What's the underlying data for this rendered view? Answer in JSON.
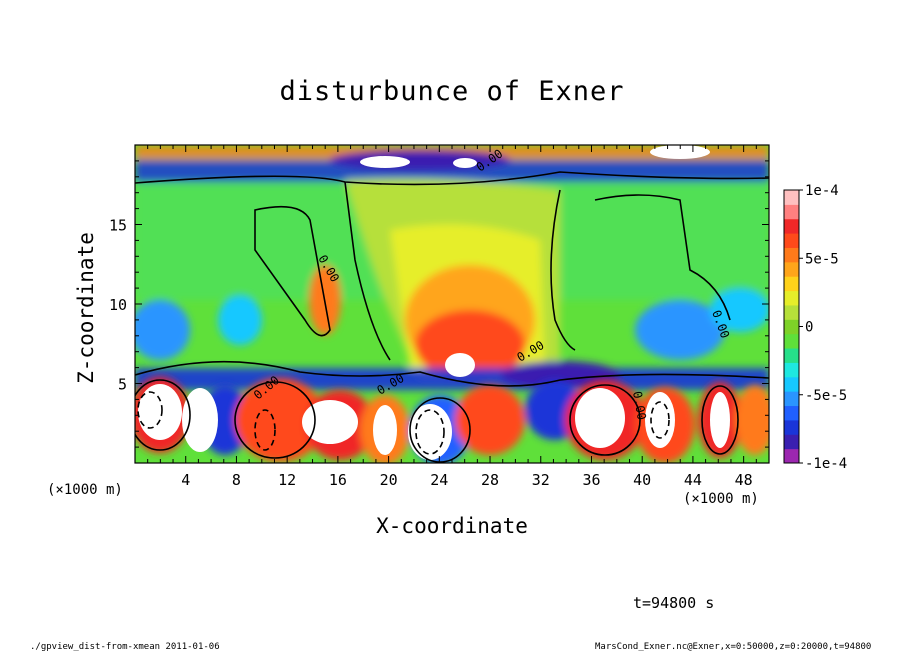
{
  "chart_data": {
    "type": "heatmap",
    "title": "disturbunce of Exner",
    "xlabel": "X-coordinate",
    "ylabel": "Z-coordinate",
    "x_unit_left": "(×1000 m)",
    "x_unit_right": "(×1000 m)",
    "xlim": [
      0,
      50
    ],
    "ylim": [
      0,
      20
    ],
    "x_ticks": [
      4,
      8,
      12,
      16,
      20,
      24,
      28,
      32,
      36,
      40,
      44,
      48
    ],
    "y_ticks": [
      5,
      10,
      15
    ],
    "colorbar": {
      "range": [
        -0.0001,
        0.0001
      ],
      "tick_labels": [
        {
          "value": 0.0001,
          "label": "1e-4"
        },
        {
          "value": 5e-05,
          "label": "5e-5"
        },
        {
          "value": 0,
          "label": "0"
        },
        {
          "value": -5e-05,
          "label": "-5e-5"
        },
        {
          "value": -0.0001,
          "label": "-1e-4"
        }
      ],
      "levels": [
        "#9c27b0",
        "#3a1fb0",
        "#1a35d8",
        "#2060ff",
        "#2a95ff",
        "#16c8ff",
        "#1ee8e0",
        "#26e08a",
        "#5fe03a",
        "#7ed228",
        "#b6e03a",
        "#e6ee2a",
        "#ffd21a",
        "#ffa51a",
        "#ff7a1a",
        "#ff4a1a",
        "#f02828",
        "#ff8080",
        "#ffc0c0"
      ]
    },
    "contour_label": "0.00",
    "annotation": "t=94800 s"
  },
  "footer": {
    "left": "./gpview_dist-from-xmean  2011-01-06",
    "right": "MarsCond_Exner.nc@Exner,x=0:50000,z=0:20000,t=94800"
  }
}
